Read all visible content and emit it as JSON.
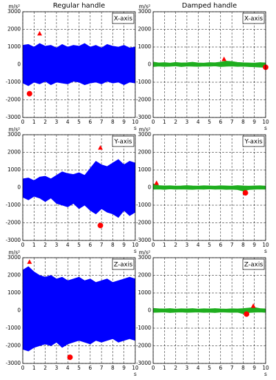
{
  "chart_data": [
    {
      "type": "band",
      "title": "Regular handle",
      "ylabel": "m/s²",
      "xlabel": "s",
      "annotation": "X-axis",
      "color": "#0000ff",
      "marker_color": "#ff0000",
      "x": [
        0,
        0.5,
        1,
        1.5,
        2,
        2.5,
        3,
        3.5,
        4,
        4.5,
        5,
        5.5,
        6,
        6.5,
        7,
        7.5,
        8,
        8.5,
        9,
        9.5,
        10
      ],
      "upper": [
        1100,
        1150,
        1000,
        1200,
        1050,
        1100,
        950,
        1150,
        1000,
        1100,
        1050,
        1200,
        1000,
        1100,
        950,
        1150,
        1050,
        1000,
        1100,
        950,
        1000
      ],
      "lower": [
        -1050,
        -1200,
        -1000,
        -1100,
        -950,
        -1150,
        -1000,
        -1050,
        -1100,
        -950,
        -1000,
        -1150,
        -1050,
        -1000,
        -1100,
        -950,
        -1050,
        -1000,
        -1150,
        -1000,
        -1050
      ],
      "max": {
        "x": 1.5,
        "y": 1750
      },
      "min": {
        "x": 0.6,
        "y": -1650
      },
      "xlim": [
        0,
        10
      ],
      "ylim": [
        -3000,
        3000
      ],
      "xticks": [
        0,
        1,
        2,
        3,
        4,
        5,
        6,
        7,
        8,
        9,
        10
      ],
      "yticks": [
        -3000,
        -2000,
        -1000,
        0,
        1000,
        2000,
        3000
      ],
      "grid": true
    },
    {
      "type": "band",
      "title": "Damped handle",
      "ylabel": "m/s²",
      "xlabel": "s",
      "annotation": "X-axis",
      "color": "#1fae1f",
      "marker_color": "#ff0000",
      "x": [
        0,
        0.5,
        1,
        1.5,
        2,
        2.5,
        3,
        3.5,
        4,
        4.5,
        5,
        5.5,
        6,
        6.5,
        7,
        7.5,
        8,
        8.5,
        9,
        9.5,
        10
      ],
      "upper": [
        150,
        100,
        120,
        90,
        130,
        100,
        110,
        140,
        100,
        90,
        120,
        110,
        150,
        200,
        180,
        130,
        110,
        100,
        90,
        120,
        100
      ],
      "lower": [
        -120,
        -90,
        -110,
        -100,
        -80,
        -120,
        -90,
        -100,
        -110,
        -90,
        -100,
        -80,
        -120,
        -100,
        -90,
        -110,
        -100,
        -120,
        -130,
        -150,
        -160
      ],
      "max": {
        "x": 6.3,
        "y": 300
      },
      "min": {
        "x": 10,
        "y": -150
      },
      "xlim": [
        0,
        10
      ],
      "ylim": [
        -3000,
        3000
      ],
      "xticks": [
        0,
        1,
        2,
        3,
        4,
        5,
        6,
        7,
        8,
        9,
        10
      ],
      "yticks": [
        -3000,
        -2000,
        -1000,
        0,
        1000,
        2000,
        3000
      ],
      "grid": true
    },
    {
      "type": "band",
      "ylabel": "m/s²",
      "xlabel": "s",
      "annotation": "Y-axis",
      "color": "#0000ff",
      "marker_color": "#ff0000",
      "x": [
        0,
        0.5,
        1,
        1.5,
        2,
        2.5,
        3,
        3.5,
        4,
        4.5,
        5,
        5.5,
        6,
        6.5,
        7,
        7.5,
        8,
        8.5,
        9,
        9.5,
        10
      ],
      "upper": [
        500,
        550,
        400,
        600,
        650,
        500,
        700,
        900,
        800,
        750,
        850,
        700,
        1100,
        1500,
        1300,
        1200,
        1400,
        1600,
        1300,
        1500,
        1400
      ],
      "lower": [
        -550,
        -700,
        -500,
        -600,
        -800,
        -600,
        -900,
        -1000,
        -1100,
        -900,
        -1200,
        -1000,
        -1300,
        -1500,
        -1200,
        -1400,
        -1500,
        -1700,
        -1300,
        -1600,
        -1400
      ],
      "max": {
        "x": 6.9,
        "y": 2250
      },
      "min": {
        "x": 6.9,
        "y": -2150
      },
      "xlim": [
        0,
        10
      ],
      "ylim": [
        -3000,
        3000
      ],
      "xticks": [
        0,
        1,
        2,
        3,
        4,
        5,
        6,
        7,
        8,
        9,
        10
      ],
      "yticks": [
        -3000,
        -2000,
        -1000,
        0,
        1000,
        2000,
        3000
      ],
      "grid": true
    },
    {
      "type": "band",
      "ylabel": "m/s²",
      "xlabel": "s",
      "annotation": "Y-axis",
      "color": "#1fae1f",
      "marker_color": "#ff0000",
      "x": [
        0,
        0.5,
        1,
        1.5,
        2,
        2.5,
        3,
        3.5,
        4,
        4.5,
        5,
        5.5,
        6,
        6.5,
        7,
        7.5,
        8,
        8.5,
        9,
        9.5,
        10
      ],
      "upper": [
        220,
        120,
        100,
        110,
        90,
        100,
        120,
        100,
        90,
        110,
        100,
        90,
        110,
        100,
        90,
        120,
        100,
        90,
        100,
        110,
        90
      ],
      "lower": [
        -100,
        -90,
        -110,
        -80,
        -100,
        -90,
        -100,
        -110,
        -90,
        -100,
        -80,
        -100,
        -90,
        -110,
        -100,
        -120,
        -200,
        -120,
        -100,
        -90,
        -100
      ],
      "max": {
        "x": 0.3,
        "y": 250
      },
      "min": {
        "x": 8.2,
        "y": -300
      },
      "xlim": [
        0,
        10
      ],
      "ylim": [
        -3000,
        3000
      ],
      "xticks": [
        0,
        1,
        2,
        3,
        4,
        5,
        6,
        7,
        8,
        9,
        10
      ],
      "yticks": [
        -3000,
        -2000,
        -1000,
        0,
        1000,
        2000,
        3000
      ],
      "grid": true
    },
    {
      "type": "band",
      "ylabel": "m/s²",
      "xlabel": "s",
      "annotation": "Z-axis",
      "color": "#0000ff",
      "marker_color": "#ff0000",
      "x": [
        0,
        0.5,
        1,
        1.5,
        2,
        2.5,
        3,
        3.5,
        4,
        4.5,
        5,
        5.5,
        6,
        6.5,
        7,
        7.5,
        8,
        8.5,
        9,
        9.5,
        10
      ],
      "upper": [
        2300,
        2500,
        2200,
        2000,
        1900,
        2000,
        1800,
        1900,
        1700,
        1800,
        1900,
        1700,
        1800,
        1600,
        1700,
        1800,
        1600,
        1700,
        1800,
        1900,
        1800
      ],
      "lower": [
        -2200,
        -2300,
        -2100,
        -2000,
        -1900,
        -2000,
        -1800,
        -2100,
        -1900,
        -1800,
        -1700,
        -1800,
        -1900,
        -1700,
        -1800,
        -1700,
        -1600,
        -1800,
        -1700,
        -1600,
        -1700
      ],
      "max": {
        "x": 0.6,
        "y": 2750
      },
      "min": {
        "x": 4.2,
        "y": -2650
      },
      "xlim": [
        0,
        10
      ],
      "ylim": [
        -3000,
        3000
      ],
      "xticks": [
        0,
        1,
        2,
        3,
        4,
        5,
        6,
        7,
        8,
        9,
        10
      ],
      "yticks": [
        -3000,
        -2000,
        -1000,
        0,
        1000,
        2000,
        3000
      ],
      "grid": true
    },
    {
      "type": "band",
      "ylabel": "m/s²",
      "xlabel": "s",
      "annotation": "Z-axis",
      "color": "#1fae1f",
      "marker_color": "#ff0000",
      "x": [
        0,
        0.5,
        1,
        1.5,
        2,
        2.5,
        3,
        3.5,
        4,
        4.5,
        5,
        5.5,
        6,
        6.5,
        7,
        7.5,
        8,
        8.5,
        9,
        9.5,
        10
      ],
      "upper": [
        130,
        110,
        100,
        120,
        90,
        110,
        100,
        120,
        90,
        110,
        100,
        120,
        100,
        90,
        110,
        100,
        120,
        150,
        180,
        120,
        100
      ],
      "lower": [
        -110,
        -100,
        -90,
        -120,
        -100,
        -90,
        -110,
        -100,
        -90,
        -110,
        -100,
        -120,
        -90,
        -100,
        -110,
        -100,
        -180,
        -120,
        -100,
        -90,
        -110
      ],
      "max": {
        "x": 8.9,
        "y": 250
      },
      "min": {
        "x": 8.3,
        "y": -200
      },
      "xlim": [
        0,
        10
      ],
      "ylim": [
        -3000,
        3000
      ],
      "xticks": [
        0,
        1,
        2,
        3,
        4,
        5,
        6,
        7,
        8,
        9,
        10
      ],
      "yticks": [
        -3000,
        -2000,
        -1000,
        0,
        1000,
        2000,
        3000
      ],
      "grid": true
    }
  ]
}
